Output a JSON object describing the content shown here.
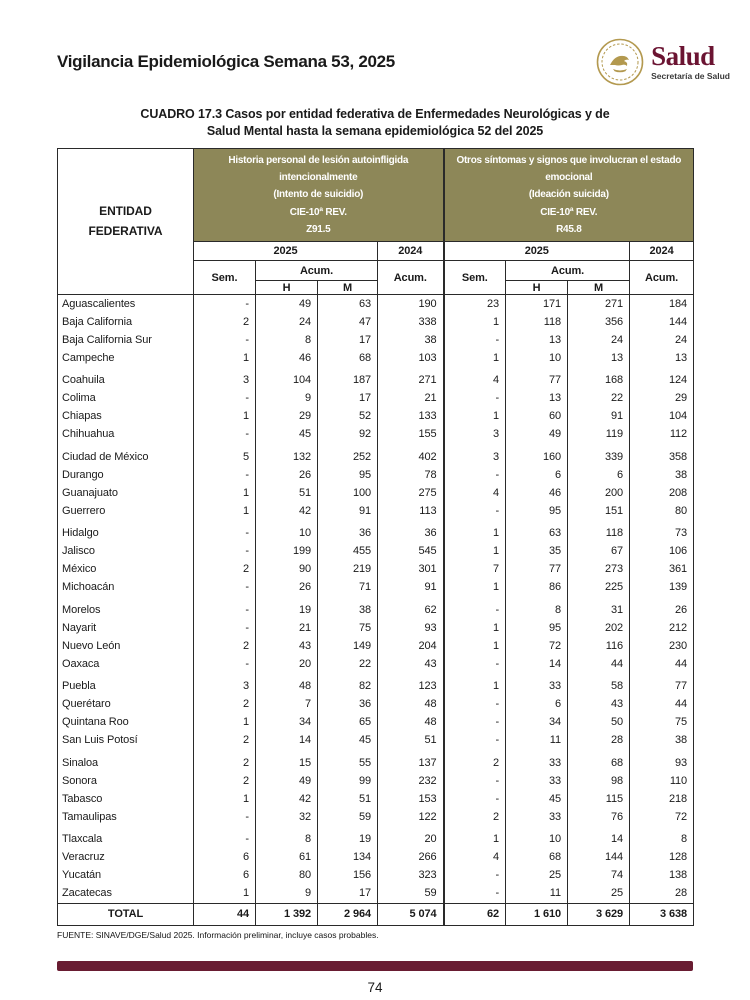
{
  "page": {
    "header_title": "Vigilancia Epidemiológica Semana 53, 2025",
    "logo": {
      "brand": "Salud",
      "sub": "Secretaría de Salud"
    },
    "source_note": "FUENTE: SINAVE/DGE/Salud 2025. Información preliminar, incluye casos probables.",
    "page_number": "74"
  },
  "table": {
    "title_line1": "CUADRO 17.3  Casos por entidad federativa de Enfermedades Neurológicas y de",
    "title_line2": "Salud Mental hasta la semana epidemiológica 52 del 2025",
    "entity_header": [
      "ENTIDAD",
      "FEDERATIVA"
    ],
    "groups": [
      {
        "lines": [
          "Historia personal de lesión autoinfligida",
          "intencionalmente",
          "(Intento de suicidio)",
          "CIE-10ª REV.",
          "Z91.5"
        ]
      },
      {
        "lines": [
          "Otros síntomas y signos que involucran el estado",
          "emocional",
          "(Ideación suicida)",
          "CIE-10ª REV.",
          "R45.8"
        ]
      }
    ],
    "year_2025": "2025",
    "year_2024": "2024",
    "sem_label": "Sem.",
    "acum_label": "Acum.",
    "h_label": "H",
    "m_label": "M",
    "rows": [
      {
        "entity": "Aguascalientes",
        "group_start": false,
        "values": [
          "-",
          "49",
          "63",
          "190",
          "23",
          "171",
          "271",
          "184"
        ]
      },
      {
        "entity": "Baja California",
        "group_start": false,
        "values": [
          "2",
          "24",
          "47",
          "338",
          "1",
          "118",
          "356",
          "144"
        ]
      },
      {
        "entity": "Baja California Sur",
        "group_start": false,
        "values": [
          "-",
          "8",
          "17",
          "38",
          "-",
          "13",
          "24",
          "24"
        ]
      },
      {
        "entity": "Campeche",
        "group_start": false,
        "values": [
          "1",
          "46",
          "68",
          "103",
          "1",
          "10",
          "13",
          "13"
        ]
      },
      {
        "entity": "Coahuila",
        "group_start": true,
        "values": [
          "3",
          "104",
          "187",
          "271",
          "4",
          "77",
          "168",
          "124"
        ]
      },
      {
        "entity": "Colima",
        "group_start": false,
        "values": [
          "-",
          "9",
          "17",
          "21",
          "-",
          "13",
          "22",
          "29"
        ]
      },
      {
        "entity": "Chiapas",
        "group_start": false,
        "values": [
          "1",
          "29",
          "52",
          "133",
          "1",
          "60",
          "91",
          "104"
        ]
      },
      {
        "entity": "Chihuahua",
        "group_start": false,
        "values": [
          "-",
          "45",
          "92",
          "155",
          "3",
          "49",
          "119",
          "112"
        ]
      },
      {
        "entity": "Ciudad de México",
        "group_start": true,
        "values": [
          "5",
          "132",
          "252",
          "402",
          "3",
          "160",
          "339",
          "358"
        ]
      },
      {
        "entity": "Durango",
        "group_start": false,
        "values": [
          "-",
          "26",
          "95",
          "78",
          "-",
          "6",
          "6",
          "38"
        ]
      },
      {
        "entity": "Guanajuato",
        "group_start": false,
        "values": [
          "1",
          "51",
          "100",
          "275",
          "4",
          "46",
          "200",
          "208"
        ]
      },
      {
        "entity": "Guerrero",
        "group_start": false,
        "values": [
          "1",
          "42",
          "91",
          "113",
          "-",
          "95",
          "151",
          "80"
        ]
      },
      {
        "entity": "Hidalgo",
        "group_start": true,
        "values": [
          "-",
          "10",
          "36",
          "36",
          "1",
          "63",
          "118",
          "73"
        ]
      },
      {
        "entity": "Jalisco",
        "group_start": false,
        "values": [
          "-",
          "199",
          "455",
          "545",
          "1",
          "35",
          "67",
          "106"
        ]
      },
      {
        "entity": "México",
        "group_start": false,
        "values": [
          "2",
          "90",
          "219",
          "301",
          "7",
          "77",
          "273",
          "361"
        ]
      },
      {
        "entity": "Michoacán",
        "group_start": false,
        "values": [
          "-",
          "26",
          "71",
          "91",
          "1",
          "86",
          "225",
          "139"
        ]
      },
      {
        "entity": "Morelos",
        "group_start": true,
        "values": [
          "-",
          "19",
          "38",
          "62",
          "-",
          "8",
          "31",
          "26"
        ]
      },
      {
        "entity": "Nayarit",
        "group_start": false,
        "values": [
          "-",
          "21",
          "75",
          "93",
          "1",
          "95",
          "202",
          "212"
        ]
      },
      {
        "entity": "Nuevo León",
        "group_start": false,
        "values": [
          "2",
          "43",
          "149",
          "204",
          "1",
          "72",
          "116",
          "230"
        ]
      },
      {
        "entity": "Oaxaca",
        "group_start": false,
        "values": [
          "-",
          "20",
          "22",
          "43",
          "-",
          "14",
          "44",
          "44"
        ]
      },
      {
        "entity": "Puebla",
        "group_start": true,
        "values": [
          "3",
          "48",
          "82",
          "123",
          "1",
          "33",
          "58",
          "77"
        ]
      },
      {
        "entity": "Querétaro",
        "group_start": false,
        "values": [
          "2",
          "7",
          "36",
          "48",
          "-",
          "6",
          "43",
          "44"
        ]
      },
      {
        "entity": "Quintana Roo",
        "group_start": false,
        "values": [
          "1",
          "34",
          "65",
          "48",
          "-",
          "34",
          "50",
          "75"
        ]
      },
      {
        "entity": "San Luis Potosí",
        "group_start": false,
        "values": [
          "2",
          "14",
          "45",
          "51",
          "-",
          "11",
          "28",
          "38"
        ]
      },
      {
        "entity": "Sinaloa",
        "group_start": true,
        "values": [
          "2",
          "15",
          "55",
          "137",
          "2",
          "33",
          "68",
          "93"
        ]
      },
      {
        "entity": "Sonora",
        "group_start": false,
        "values": [
          "2",
          "49",
          "99",
          "232",
          "-",
          "33",
          "98",
          "110"
        ]
      },
      {
        "entity": "Tabasco",
        "group_start": false,
        "values": [
          "1",
          "42",
          "51",
          "153",
          "-",
          "45",
          "115",
          "218"
        ]
      },
      {
        "entity": "Tamaulipas",
        "group_start": false,
        "values": [
          "-",
          "32",
          "59",
          "122",
          "2",
          "33",
          "76",
          "72"
        ]
      },
      {
        "entity": "Tlaxcala",
        "group_start": true,
        "values": [
          "-",
          "8",
          "19",
          "20",
          "1",
          "10",
          "14",
          "8"
        ]
      },
      {
        "entity": "Veracruz",
        "group_start": false,
        "values": [
          "6",
          "61",
          "134",
          "266",
          "4",
          "68",
          "144",
          "128"
        ]
      },
      {
        "entity": "Yucatán",
        "group_start": false,
        "values": [
          "6",
          "80",
          "156",
          "323",
          "-",
          "25",
          "74",
          "138"
        ]
      },
      {
        "entity": "Zacatecas",
        "group_start": false,
        "values": [
          "1",
          "9",
          "17",
          "59",
          "-",
          "11",
          "25",
          "28"
        ]
      }
    ],
    "total": {
      "label": "TOTAL",
      "values": [
        "44",
        "1 392",
        "2 964",
        "5 074",
        "62",
        "1 610",
        "3 629",
        "3 638"
      ]
    }
  },
  "colors": {
    "header_olive": "#8d8758",
    "maroon": "#691c32",
    "logo_gold": "#b3994f",
    "logo_maroon": "#6b1432"
  }
}
